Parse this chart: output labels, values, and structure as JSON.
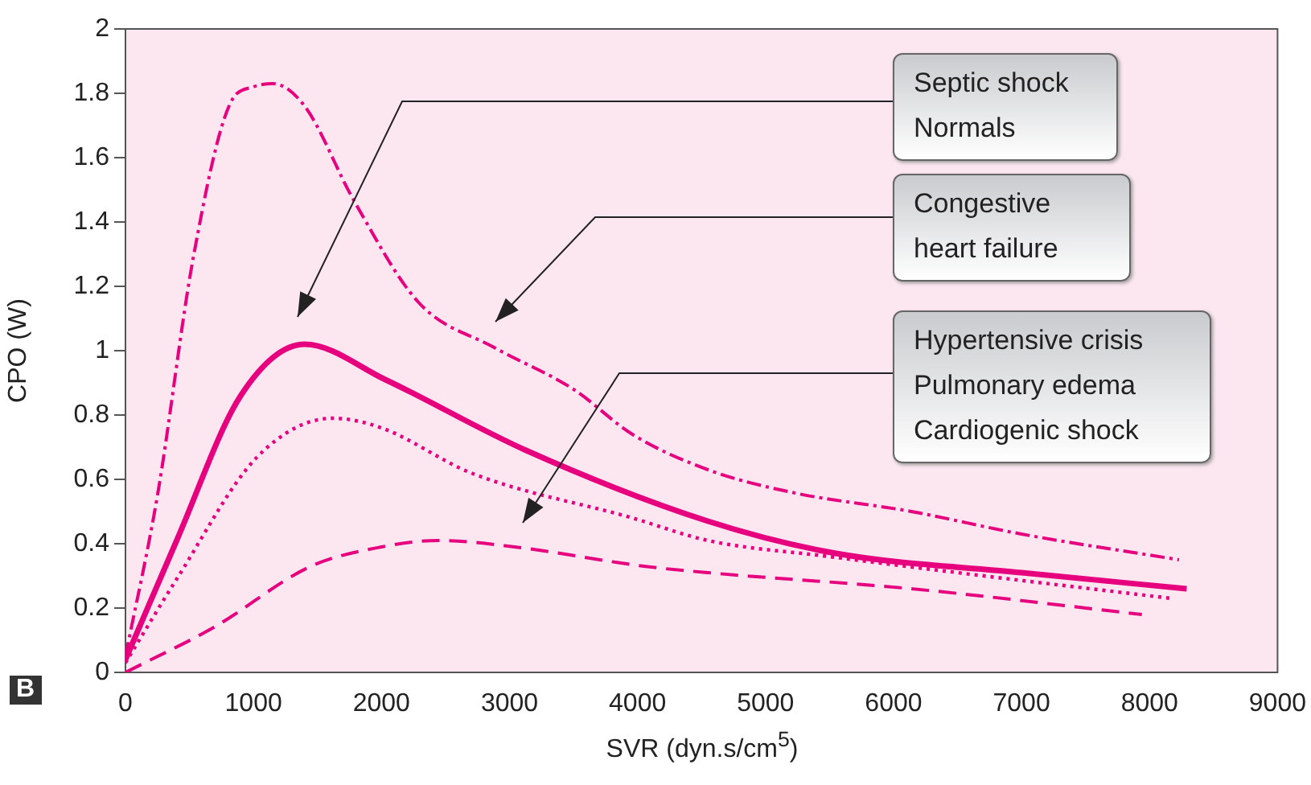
{
  "chart_data": {
    "type": "line",
    "xlabel": "SVR (dyn.s/cm$^{5}$)",
    "ylabel": "CPO (W)",
    "xlim": [
      0,
      9000
    ],
    "xticks": [
      0,
      1000,
      2000,
      3000,
      4000,
      5000,
      6000,
      7000,
      8000,
      9000
    ],
    "ylim": [
      0,
      2
    ],
    "yticks": [
      0,
      {
        "value": 0.2,
        "label": "0.2"
      },
      {
        "value": 0.4,
        "label": "0.4"
      },
      {
        "value": 0.6,
        "label": "0.6"
      },
      {
        "value": 0.8,
        "label": "0.8"
      },
      1,
      {
        "value": 1.2,
        "label": "1.2"
      },
      {
        "value": 1.4,
        "label": "1.4"
      },
      {
        "value": 1.6,
        "label": "1.6"
      },
      {
        "value": 1.8,
        "label": "1.8"
      },
      2
    ],
    "grid": false,
    "legend": false,
    "marker": "none",
    "series": [
      {
        "color": "#e6007e",
        "line_style": "dashdot",
        "x": [
          0,
          250,
          530,
          820,
          1000,
          1150,
          1400,
          1780,
          2290,
          2880,
          3500,
          3960,
          4550,
          5200,
          6140,
          7000,
          8230
        ],
        "values": [
          0.05,
          0.55,
          1.29,
          1.77,
          1.82,
          1.83,
          1.76,
          1.47,
          1.15,
          1.01,
          0.88,
          0.74,
          0.63,
          0.56,
          0.5,
          0.43,
          0.35
        ]
      },
      {
        "color": "#e6007e",
        "line_style": "solid",
        "x": [
          0,
          400,
          900,
          1400,
          2030,
          3130,
          4550,
          5550,
          7000,
          8290
        ],
        "values": [
          0.04,
          0.41,
          0.86,
          1.02,
          0.91,
          0.69,
          0.47,
          0.37,
          0.31,
          0.26
        ]
      },
      {
        "color": "#e6007e",
        "line_style": "dotted",
        "x": [
          0,
          400,
          1030,
          1620,
          2000,
          2700,
          3960,
          4550,
          5500,
          6500,
          8170
        ],
        "values": [
          0.03,
          0.29,
          0.67,
          0.79,
          0.76,
          0.62,
          0.48,
          0.41,
          0.36,
          0.31,
          0.23
        ]
      },
      {
        "color": "#e6007e",
        "line_style": "dashed",
        "x": [
          0,
          690,
          1450,
          2000,
          2450,
          3040,
          4050,
          4550,
          6140,
          7940
        ],
        "values": [
          0,
          0.14,
          0.33,
          0.39,
          0.41,
          0.39,
          0.33,
          0.31,
          0.26,
          0.18
        ]
      }
    ],
    "annotations": [
      "Septic shock\nNormals",
      "Congestive heart failure",
      "Hypertensive crisis\nPulmonary edema\nCardiogenic shock",
      "B"
    ]
  }
}
